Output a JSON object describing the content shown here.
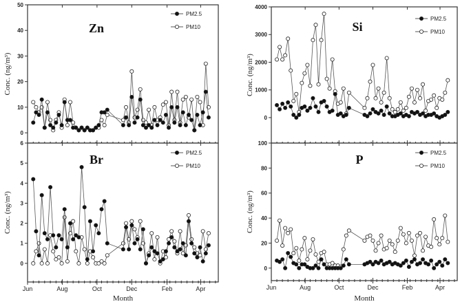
{
  "chart_data": {
    "type": "line",
    "x_unit": "days since Jun 1",
    "x": [
      10,
      15,
      20,
      25,
      30,
      35,
      40,
      45,
      50,
      55,
      60,
      65,
      70,
      75,
      80,
      85,
      90,
      95,
      100,
      105,
      110,
      115,
      120,
      125,
      130,
      135,
      140,
      168,
      173,
      178,
      183,
      188,
      193,
      198,
      203,
      208,
      213,
      218,
      223,
      228,
      233,
      238,
      243,
      248,
      253,
      258,
      263,
      268,
      273,
      278,
      283,
      288,
      293,
      298,
      303,
      308,
      313,
      318
    ],
    "xlim": [
      0,
      335
    ],
    "month_ticks": [
      {
        "label": "Jun",
        "day": 0
      },
      {
        "label": "Aug",
        "day": 61
      },
      {
        "label": "Oct",
        "day": 122
      },
      {
        "label": "Dec",
        "day": 183
      },
      {
        "label": "Feb",
        "day": 245
      },
      {
        "label": "Apr",
        "day": 304
      }
    ],
    "xlabel": "Month",
    "ylabel": "Conc. (ng/m³)",
    "legend": [
      "PM2.5",
      "PM10"
    ],
    "legend_placement": "top-right",
    "panels": [
      {
        "title": "Zn",
        "ylim": [
          -4,
          50
        ],
        "yticks": [
          0,
          10,
          20,
          30,
          40,
          50
        ],
        "series": [
          {
            "name": "PM2.5",
            "values": [
              4,
              8,
              7,
              13,
              2,
              8,
              3,
              2,
              4,
              7,
              3,
              12,
              5,
              5,
              2,
              2,
              1,
              2,
              1,
              2,
              1,
              1,
              2,
              3,
              8,
              8,
              9,
              3,
              6,
              3,
              14,
              4,
              6,
              13,
              3,
              2,
              3,
              2,
              5,
              3,
              5,
              4,
              7,
              2,
              10,
              4,
              10,
              3,
              8,
              3,
              7,
              5,
              1,
              7,
              3,
              8,
              16,
              6
            ]
          },
          {
            "name": "PM10",
            "values": [
              12,
              10,
              8,
              10,
              2,
              12,
              5,
              1,
              5,
              8,
              2,
              13,
              3,
              12,
              4,
              2,
              1,
              2,
              1,
              2,
              1,
              1,
              2,
              2,
              5,
              3,
              7,
              5,
              10,
              4,
              24,
              6,
              9,
              17,
              5,
              4,
              9,
              3,
              10,
              5,
              6,
              11,
              12,
              3,
              16,
              5,
              16,
              4,
              13,
              14,
              6,
              13,
              1,
              14,
              12,
              3,
              27,
              10
            ]
          }
        ]
      },
      {
        "title": "Si",
        "ylim": [
          -920,
          4000
        ],
        "yticks": [
          0,
          1000,
          2000,
          3000,
          4000
        ],
        "series": [
          {
            "name": "PM2.5",
            "values": [
              450,
              300,
              500,
              350,
              550,
              400,
              100,
              0,
              100,
              350,
              400,
              250,
              350,
              700,
              400,
              200,
              550,
              600,
              400,
              200,
              250,
              850,
              100,
              150,
              50,
              100,
              350,
              100,
              50,
              150,
              300,
              200,
              150,
              250,
              100,
              400,
              150,
              50,
              50,
              100,
              150,
              50,
              100,
              50,
              200,
              150,
              200,
              100,
              150,
              50,
              100,
              100,
              150,
              50,
              0,
              50,
              100,
              200
            ]
          },
          {
            "name": "PM10",
            "values": [
              2100,
              2550,
              2100,
              2250,
              2850,
              1700,
              600,
              850,
              200,
              1250,
              1600,
              1900,
              1150,
              2800,
              3350,
              1200,
              2800,
              3750,
              1400,
              1050,
              2100,
              950,
              500,
              550,
              1050,
              150,
              900,
              350,
              700,
              1300,
              1900,
              700,
              1050,
              550,
              900,
              2150,
              700,
              300,
              200,
              300,
              550,
              250,
              350,
              750,
              1050,
              550,
              1000,
              700,
              1200,
              250,
              600,
              650,
              800,
              350,
              700,
              650,
              900,
              1350
            ]
          }
        ]
      },
      {
        "title": "Br",
        "ylim": [
          -0.93,
          6
        ],
        "yticks": [
          0,
          1,
          2,
          3,
          4,
          5,
          6
        ],
        "series": [
          {
            "name": "PM2.5",
            "values": [
              4.2,
              1.6,
              0.4,
              3.4,
              1.5,
              1.2,
              3.8,
              1.4,
              0.8,
              1.4,
              1.2,
              2.7,
              0.8,
              2.0,
              1.2,
              1.4,
              1.3,
              4.8,
              2.8,
              0.2,
              2.1,
              0.6,
              1.9,
              1.5,
              2.7,
              3.1,
              1.0,
              0.7,
              1.8,
              0.7,
              1.9,
              1.0,
              1.2,
              0.7,
              1.7,
              0,
              0.4,
              0.8,
              0.6,
              0.5,
              0.1,
              0.2,
              0.6,
              1.0,
              1.3,
              0.8,
              0.6,
              0.7,
              1.0,
              0.4,
              2.1,
              1.0,
              0.5,
              0.3,
              0.8,
              0.1,
              0.5,
              0.9
            ]
          },
          {
            "name": "PM10",
            "values": [
              0,
              0.6,
              1.0,
              0,
              0.7,
              0,
              1.4,
              0.6,
              0.2,
              0.3,
              0,
              2.3,
              0.1,
              1.5,
              2.1,
              0.6,
              0,
              1.3,
              0.7,
              0,
              0.6,
              0.3,
              0,
              0,
              0.1,
              0,
              0.4,
              1.0,
              2.0,
              1.2,
              2.1,
              1.7,
              1.3,
              2.1,
              1.0,
              0,
              0.5,
              1.5,
              0.2,
              1.3,
              0,
              0.6,
              0.3,
              1.2,
              1.6,
              1.1,
              0.5,
              1.6,
              0.5,
              0.9,
              2.4,
              1.2,
              0.8,
              0.5,
              0.4,
              1.6,
              0.7,
              1.5
            ]
          }
        ]
      },
      {
        "title": "P",
        "ylim": [
          -10,
          100
        ],
        "yticks": [
          0,
          20,
          40,
          60,
          80,
          100
        ],
        "series": [
          {
            "name": "PM2.5",
            "values": [
              6,
              5,
              7,
              0,
              12,
              9,
              4,
              3,
              0,
              3,
              3,
              1,
              0,
              0,
              2,
              0,
              7,
              3,
              0,
              0,
              0,
              0,
              0,
              0,
              2,
              7,
              3,
              3,
              4,
              5,
              3,
              5,
              4,
              6,
              3,
              4,
              5,
              3,
              4,
              3,
              2,
              4,
              6,
              1,
              5,
              7,
              3,
              4,
              7,
              4,
              3,
              6,
              0,
              3,
              5,
              2,
              7,
              4
            ]
          },
          {
            "name": "PM10",
            "values": [
              22,
              38,
              18,
              32,
              28,
              31,
              12,
              16,
              6,
              15,
              24,
              7,
              14,
              23,
              11,
              5,
              12,
              13,
              3,
              3,
              4,
              2,
              2,
              1,
              15,
              26,
              30,
              22,
              25,
              26,
              22,
              14,
              20,
              26,
              15,
              16,
              22,
              19,
              13,
              22,
              32,
              27,
              20,
              28,
              22,
              10,
              26,
              28,
              14,
              25,
              18,
              17,
              39,
              24,
              19,
              24,
              42,
              21
            ]
          }
        ]
      }
    ]
  },
  "colors": {
    "pm25": "#111111",
    "pm10": "#ffffff",
    "line": "#555555",
    "frame": "#333333"
  }
}
